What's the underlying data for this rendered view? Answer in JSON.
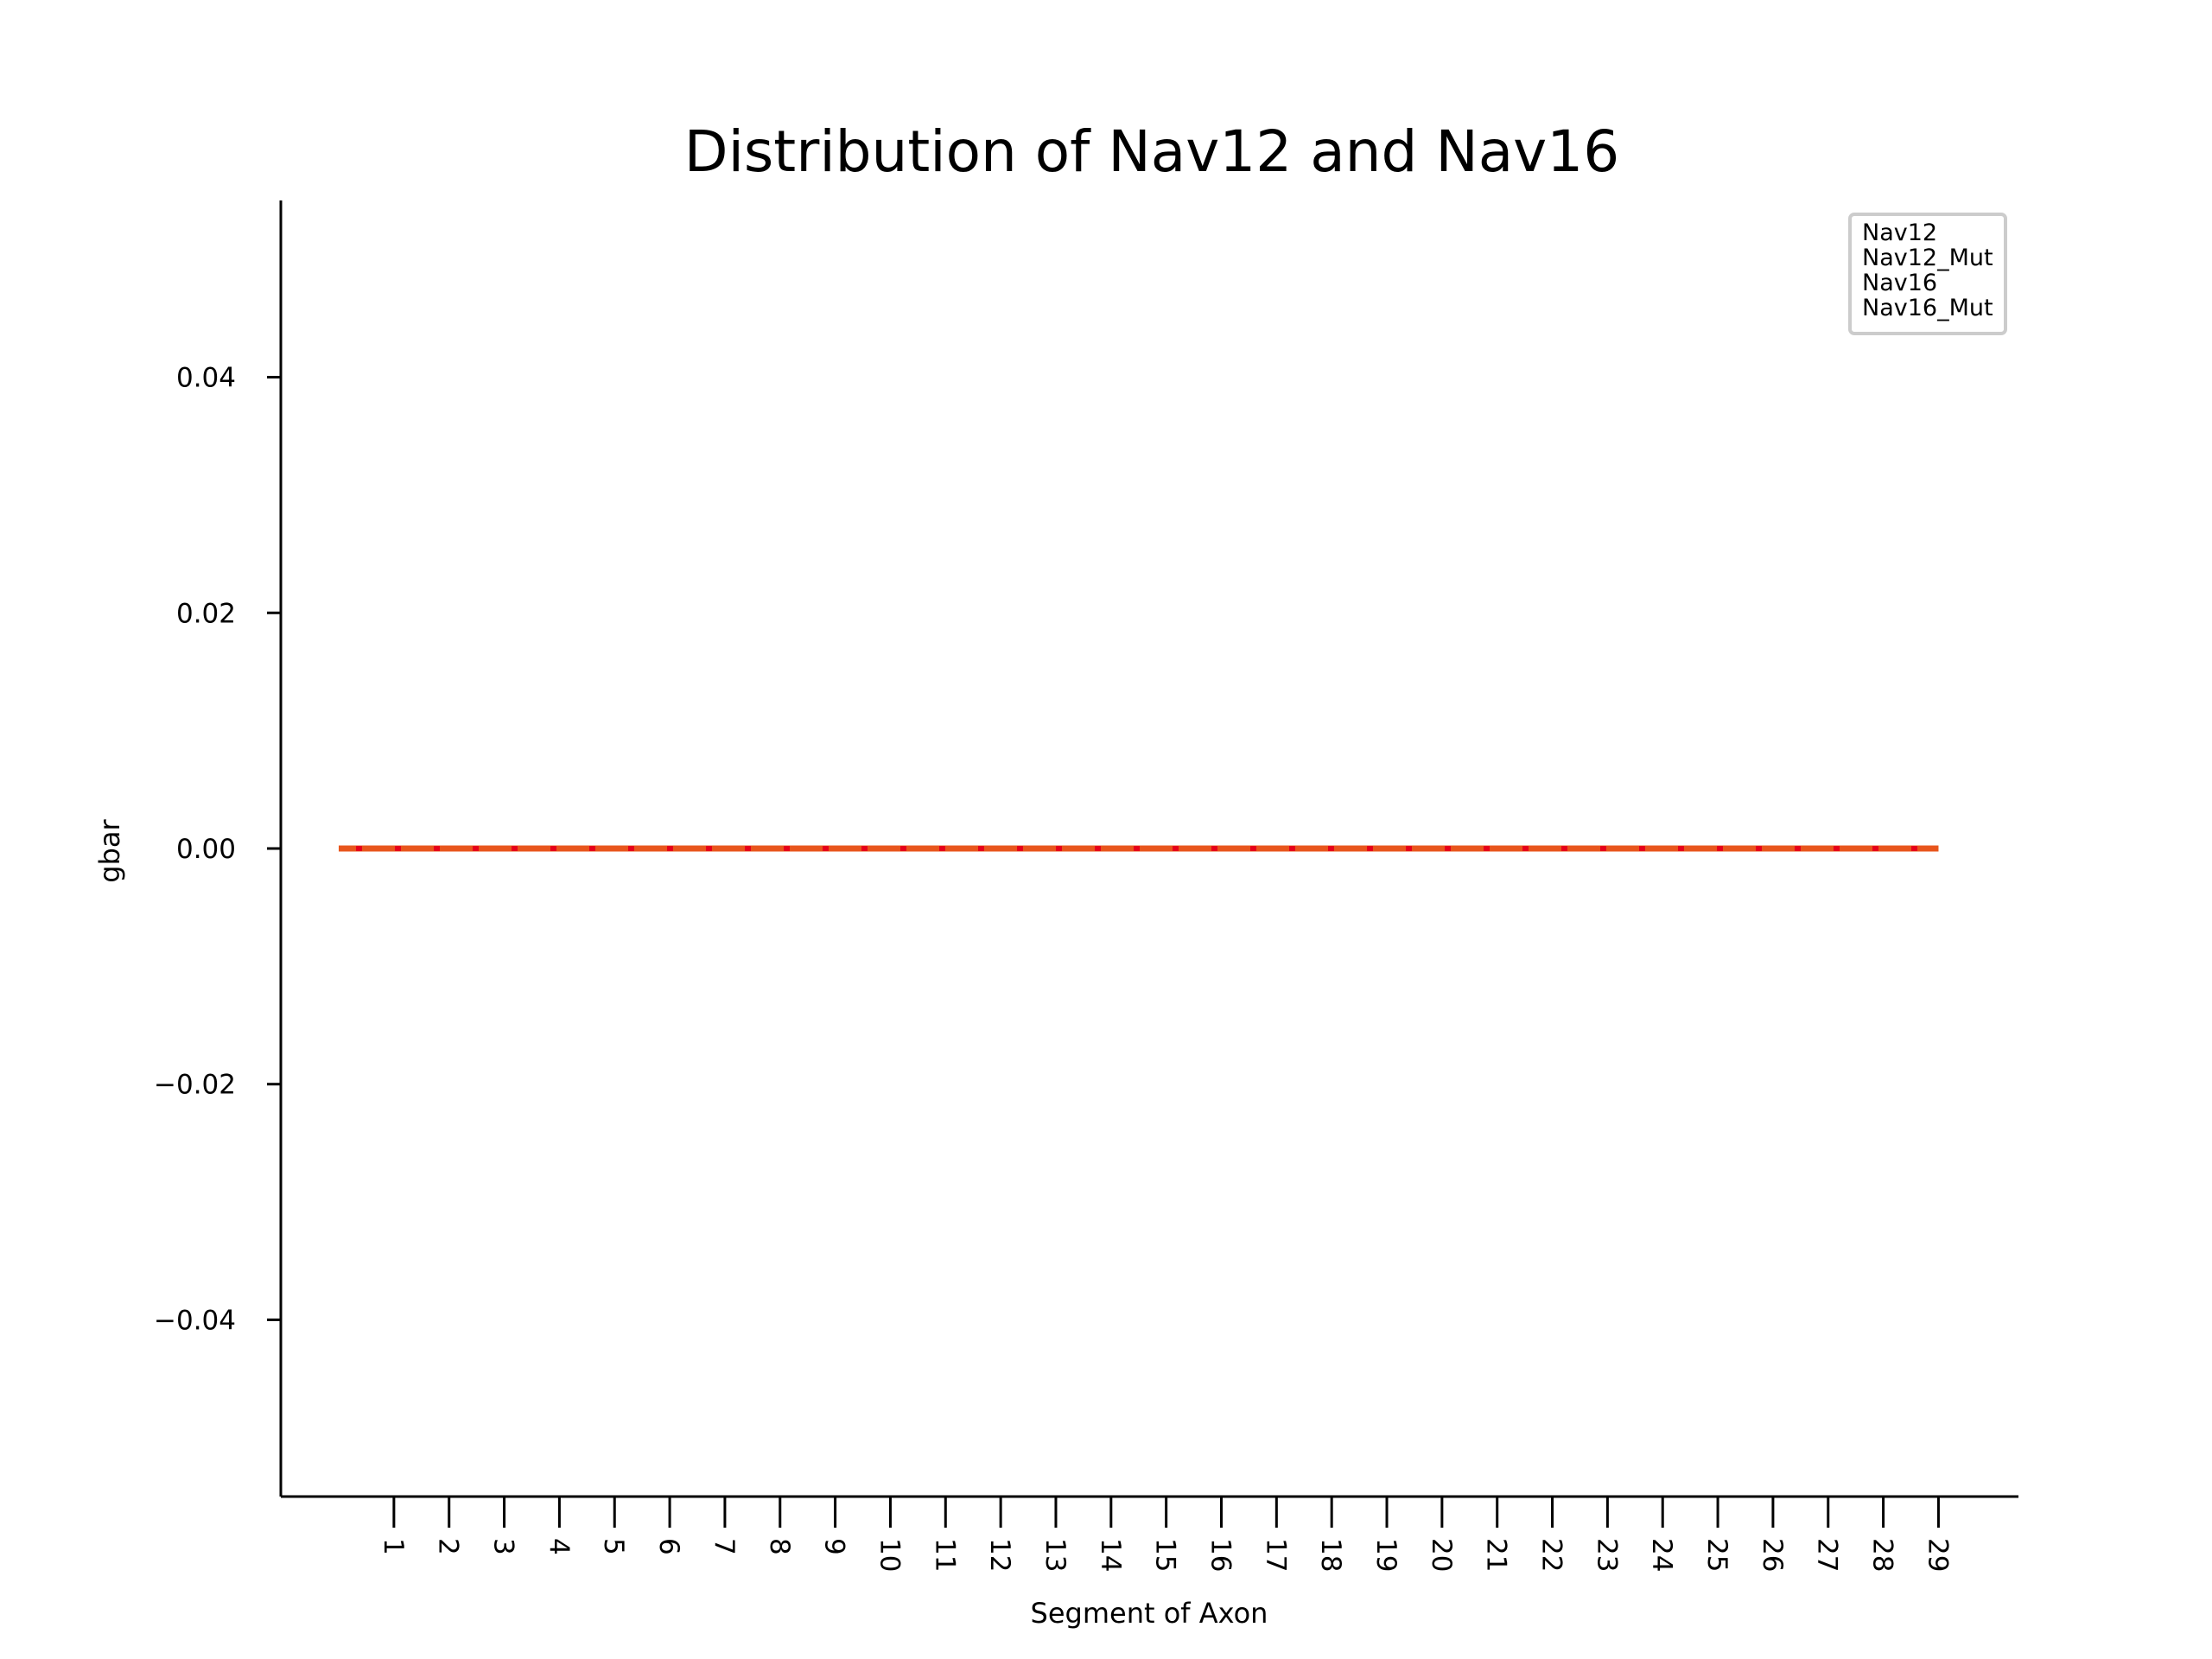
{
  "chart_data": {
    "type": "line",
    "title": "Distribution of Nav12 and Nav16",
    "xlabel": "Segment of Axon",
    "ylabel": "gbar",
    "x": [
      0,
      1,
      2,
      3,
      4,
      5,
      6,
      7,
      8,
      9,
      10,
      11,
      12,
      13,
      14,
      15,
      16,
      17,
      18,
      19,
      20,
      21,
      22,
      23,
      24,
      25,
      26,
      27,
      28,
      29
    ],
    "xticks": [
      1,
      2,
      3,
      4,
      5,
      6,
      7,
      8,
      9,
      10,
      11,
      12,
      13,
      14,
      15,
      16,
      17,
      18,
      19,
      20,
      21,
      22,
      23,
      24,
      25,
      26,
      27,
      28,
      29
    ],
    "xlim": [
      -1.05,
      30.45
    ],
    "ylim": [
      -0.055,
      0.055
    ],
    "yticks": [
      -0.04,
      -0.02,
      0.0,
      0.02,
      0.04
    ],
    "ytick_labels": [
      "−0.04",
      "−0.02",
      "0.00",
      "0.02",
      "0.04"
    ],
    "grid": false,
    "legend_position": "top-right",
    "series": [
      {
        "name": "Nav12",
        "color": "#1f77b4",
        "style": "solid",
        "values": [
          0,
          0,
          0,
          0,
          0,
          0,
          0,
          0,
          0,
          0,
          0,
          0,
          0,
          0,
          0,
          0,
          0,
          0,
          0,
          0,
          0,
          0,
          0,
          0,
          0,
          0,
          0,
          0,
          0,
          0
        ]
      },
      {
        "name": "Nav12_Mut",
        "color": "#ff7f0e",
        "style": "solid",
        "values": [
          0,
          0,
          0,
          0,
          0,
          0,
          0,
          0,
          0,
          0,
          0,
          0,
          0,
          0,
          0,
          0,
          0,
          0,
          0,
          0,
          0,
          0,
          0,
          0,
          0,
          0,
          0,
          0,
          0,
          0
        ]
      },
      {
        "name": "Nav16",
        "color": "#e8551c",
        "style": "solid",
        "values": [
          0,
          0,
          0,
          0,
          0,
          0,
          0,
          0,
          0,
          0,
          0,
          0,
          0,
          0,
          0,
          0,
          0,
          0,
          0,
          0,
          0,
          0,
          0,
          0,
          0,
          0,
          0,
          0,
          0,
          0
        ]
      },
      {
        "name": "Nav16_Mut",
        "color": "#e6001a",
        "style": "dotted",
        "values": [
          0,
          0,
          0,
          0,
          0,
          0,
          0,
          0,
          0,
          0,
          0,
          0,
          0,
          0,
          0,
          0,
          0,
          0,
          0,
          0,
          0,
          0,
          0,
          0,
          0,
          0,
          0,
          0,
          0,
          0
        ]
      }
    ]
  }
}
